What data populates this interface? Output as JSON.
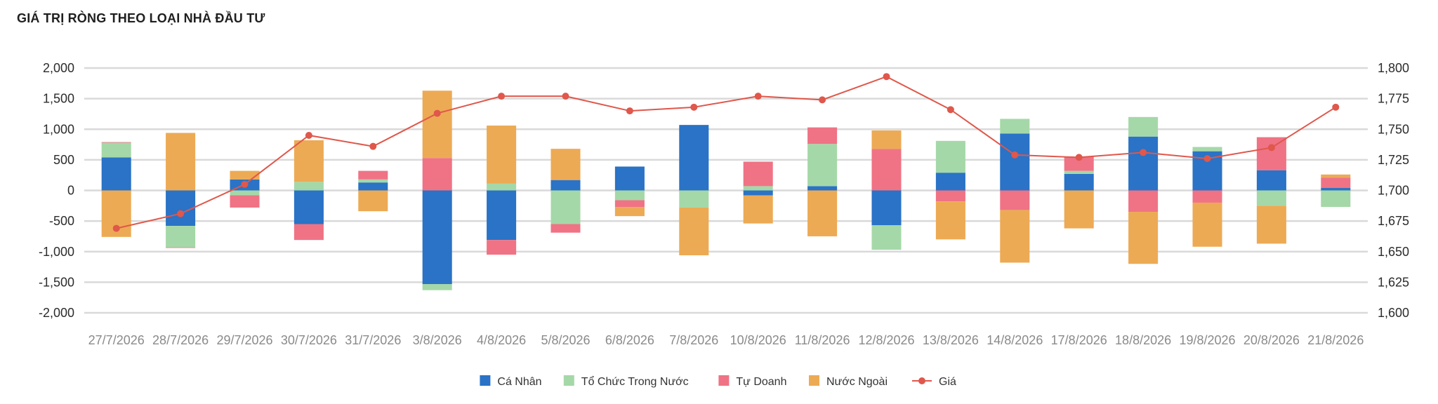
{
  "chart_data": {
    "type": "bar",
    "title": "GIÁ TRỊ RÒNG THEO LOẠI NHÀ ĐẦU TƯ",
    "stacked": true,
    "categories": [
      "27/7/2026",
      "28/7/2026",
      "29/7/2026",
      "30/7/2026",
      "31/7/2026",
      "3/8/2026",
      "4/8/2026",
      "5/8/2026",
      "6/8/2026",
      "7/8/2026",
      "10/8/2026",
      "11/8/2026",
      "12/8/2026",
      "13/8/2026",
      "14/8/2026",
      "17/8/2026",
      "18/8/2026",
      "19/8/2026",
      "20/8/2026",
      "21/8/2026"
    ],
    "series": [
      {
        "name": "Cá Nhân",
        "color": "#2a73c6",
        "values": [
          540,
          -580,
          180,
          -550,
          130,
          -1530,
          -810,
          170,
          390,
          1070,
          -80,
          70,
          -570,
          290,
          930,
          270,
          880,
          640,
          330,
          40
        ]
      },
      {
        "name": "Tổ Chức Trong Nước",
        "color": "#a5d8a8",
        "values": [
          240,
          -350,
          -80,
          140,
          50,
          -100,
          110,
          -550,
          -160,
          -280,
          70,
          690,
          -400,
          520,
          240,
          50,
          320,
          70,
          -250,
          -270
        ]
      },
      {
        "name": "Tự Doanh",
        "color": "#ef7385",
        "values": [
          10,
          -10,
          -200,
          -260,
          140,
          530,
          -240,
          -140,
          -110,
          0,
          400,
          270,
          680,
          -180,
          -320,
          230,
          -350,
          -200,
          540,
          170
        ]
      },
      {
        "name": "Nước Ngoài",
        "color": "#edaa54",
        "values": [
          -760,
          940,
          140,
          680,
          -340,
          1100,
          950,
          510,
          -150,
          -780,
          -460,
          -750,
          300,
          -620,
          -860,
          -620,
          -850,
          -720,
          -620,
          50
        ]
      }
    ],
    "line": {
      "name": "Giá",
      "color": "#e0574b",
      "axis": "right",
      "values": [
        1669,
        1681,
        1705,
        1745,
        1736,
        1763,
        1777,
        1777,
        1765,
        1768,
        1777,
        1774,
        1793,
        1766,
        1729,
        1727,
        1731,
        1726,
        1735,
        1768
      ]
    },
    "y_left": {
      "min": -2000,
      "max": 2000,
      "step": 500,
      "ticks": [
        "2,000",
        "1,500",
        "1,000",
        "500",
        "0",
        "-500",
        "-1,000",
        "-1,500",
        "-2,000"
      ]
    },
    "y_right": {
      "min": 1600,
      "max": 1800,
      "step": 25,
      "ticks": [
        "1,800",
        "1,775",
        "1,750",
        "1,725",
        "1,700",
        "1,675",
        "1,650",
        "1,625",
        "1,600"
      ]
    },
    "grid": true,
    "legend_position": "bottom-center"
  }
}
